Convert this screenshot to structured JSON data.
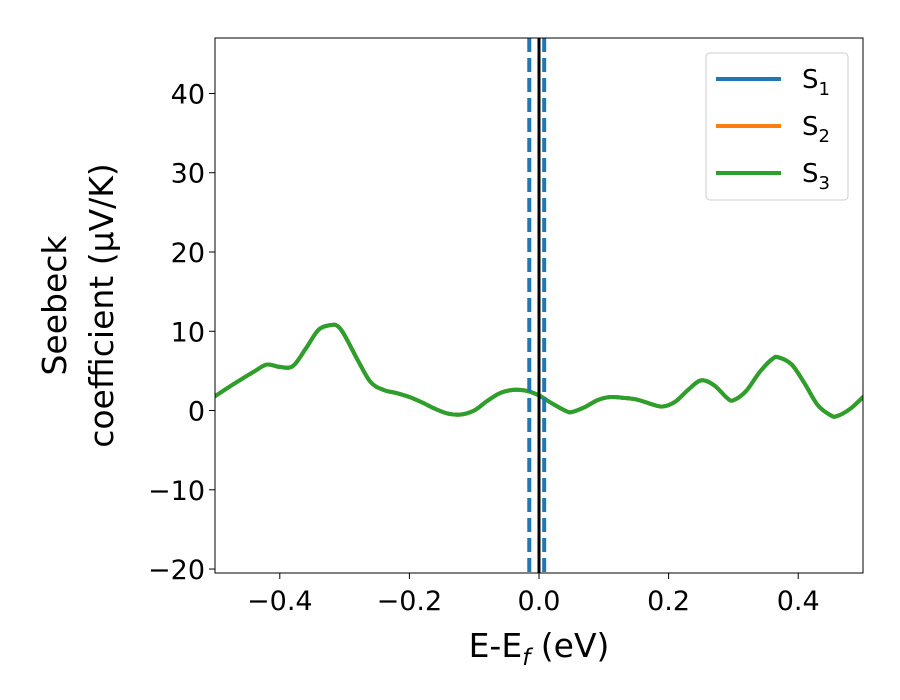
{
  "chart_data": {
    "type": "line",
    "title": "",
    "xlabel": "E-E_f (eV)",
    "xlabel_parts": [
      "E-E",
      "f",
      " (eV)"
    ],
    "ylabel_lines": [
      "Seebeck",
      "coefficient  (μV/K)"
    ],
    "xlim": [
      -0.5,
      0.5
    ],
    "ylim": [
      -20.5,
      47
    ],
    "x_ticks": [
      -0.4,
      -0.2,
      0.0,
      0.2,
      0.4
    ],
    "x_tick_labels": [
      "−0.4",
      "−0.2",
      "0.0",
      "0.2",
      "0.4"
    ],
    "y_ticks": [
      -20,
      -10,
      0,
      10,
      20,
      30,
      40
    ],
    "y_tick_labels": [
      "−20",
      "−10",
      "0",
      "10",
      "20",
      "30",
      "40"
    ],
    "grid": false,
    "legend": "top-right",
    "series": [
      {
        "name": "S_1",
        "label_base": "S",
        "label_sub": "1",
        "color": "#1f77b4",
        "x": [
          -0.5,
          -0.47,
          -0.44,
          -0.42,
          -0.4,
          -0.38,
          -0.36,
          -0.34,
          -0.32,
          -0.31,
          -0.3,
          -0.28,
          -0.26,
          -0.24,
          -0.22,
          -0.2,
          -0.18,
          -0.16,
          -0.14,
          -0.12,
          -0.1,
          -0.08,
          -0.06,
          -0.04,
          -0.02,
          0.0,
          0.02,
          0.04,
          0.05,
          0.07,
          0.09,
          0.11,
          0.13,
          0.15,
          0.17,
          0.19,
          0.21,
          0.23,
          0.25,
          0.27,
          0.29,
          0.3,
          0.32,
          0.34,
          0.36,
          0.37,
          0.39,
          0.41,
          0.43,
          0.45,
          0.46,
          0.48,
          0.5
        ],
        "y": [
          1.8,
          3.4,
          4.9,
          5.8,
          5.5,
          5.6,
          7.8,
          10.2,
          10.8,
          10.6,
          9.5,
          6.4,
          3.6,
          2.6,
          2.2,
          1.7,
          1.0,
          0.2,
          -0.4,
          -0.5,
          0.0,
          1.2,
          2.2,
          2.6,
          2.5,
          1.9,
          0.9,
          0.0,
          -0.2,
          0.4,
          1.3,
          1.7,
          1.6,
          1.4,
          0.9,
          0.5,
          1.1,
          2.6,
          3.8,
          3.2,
          1.6,
          1.3,
          2.5,
          4.8,
          6.5,
          6.7,
          5.8,
          3.4,
          0.7,
          -0.6,
          -0.7,
          0.2,
          1.7
        ]
      },
      {
        "name": "S_2",
        "label_base": "S",
        "label_sub": "2",
        "color": "#ff7f0e",
        "x": [
          -0.5,
          -0.47,
          -0.44,
          -0.42,
          -0.4,
          -0.38,
          -0.36,
          -0.34,
          -0.32,
          -0.31,
          -0.3,
          -0.28,
          -0.26,
          -0.24,
          -0.22,
          -0.2,
          -0.18,
          -0.16,
          -0.14,
          -0.12,
          -0.1,
          -0.08,
          -0.06,
          -0.04,
          -0.02,
          0.0,
          0.02,
          0.04,
          0.05,
          0.07,
          0.09,
          0.11,
          0.13,
          0.15,
          0.17,
          0.19,
          0.21,
          0.23,
          0.25,
          0.27,
          0.29,
          0.3,
          0.32,
          0.34,
          0.36,
          0.37,
          0.39,
          0.41,
          0.43,
          0.45,
          0.46,
          0.48,
          0.5
        ],
        "y": [
          1.8,
          3.4,
          4.9,
          5.8,
          5.5,
          5.6,
          7.8,
          10.2,
          10.8,
          10.6,
          9.5,
          6.4,
          3.6,
          2.6,
          2.2,
          1.7,
          1.0,
          0.2,
          -0.4,
          -0.5,
          0.0,
          1.2,
          2.2,
          2.6,
          2.5,
          1.9,
          0.9,
          0.0,
          -0.2,
          0.4,
          1.3,
          1.7,
          1.6,
          1.4,
          0.9,
          0.5,
          1.1,
          2.6,
          3.8,
          3.2,
          1.6,
          1.3,
          2.5,
          4.8,
          6.5,
          6.7,
          5.8,
          3.4,
          0.7,
          -0.6,
          -0.7,
          0.2,
          1.7
        ]
      },
      {
        "name": "S_3",
        "label_base": "S",
        "label_sub": "3",
        "color": "#2ca02c",
        "x": [
          -0.5,
          -0.47,
          -0.44,
          -0.42,
          -0.4,
          -0.38,
          -0.36,
          -0.34,
          -0.32,
          -0.31,
          -0.3,
          -0.28,
          -0.26,
          -0.24,
          -0.22,
          -0.2,
          -0.18,
          -0.16,
          -0.14,
          -0.12,
          -0.1,
          -0.08,
          -0.06,
          -0.04,
          -0.02,
          0.0,
          0.02,
          0.04,
          0.05,
          0.07,
          0.09,
          0.11,
          0.13,
          0.15,
          0.17,
          0.19,
          0.21,
          0.23,
          0.25,
          0.27,
          0.29,
          0.3,
          0.32,
          0.34,
          0.36,
          0.37,
          0.39,
          0.41,
          0.43,
          0.45,
          0.46,
          0.48,
          0.5
        ],
        "y": [
          1.8,
          3.4,
          4.9,
          5.8,
          5.5,
          5.6,
          7.8,
          10.2,
          10.8,
          10.6,
          9.5,
          6.4,
          3.6,
          2.6,
          2.2,
          1.7,
          1.0,
          0.2,
          -0.4,
          -0.5,
          0.0,
          1.2,
          2.2,
          2.6,
          2.5,
          1.9,
          0.9,
          0.0,
          -0.2,
          0.4,
          1.3,
          1.7,
          1.6,
          1.4,
          0.9,
          0.5,
          1.1,
          2.6,
          3.8,
          3.2,
          1.6,
          1.3,
          2.5,
          4.8,
          6.5,
          6.7,
          5.8,
          3.4,
          0.7,
          -0.6,
          -0.7,
          0.2,
          1.7
        ]
      }
    ],
    "vertical_lines": [
      {
        "x": 0.0,
        "style": "solid",
        "color": "#000000"
      },
      {
        "x": -0.015,
        "style": "dashed",
        "color": "#1f77b4"
      },
      {
        "x": 0.008,
        "style": "dashed",
        "color": "#1f77b4"
      }
    ]
  }
}
